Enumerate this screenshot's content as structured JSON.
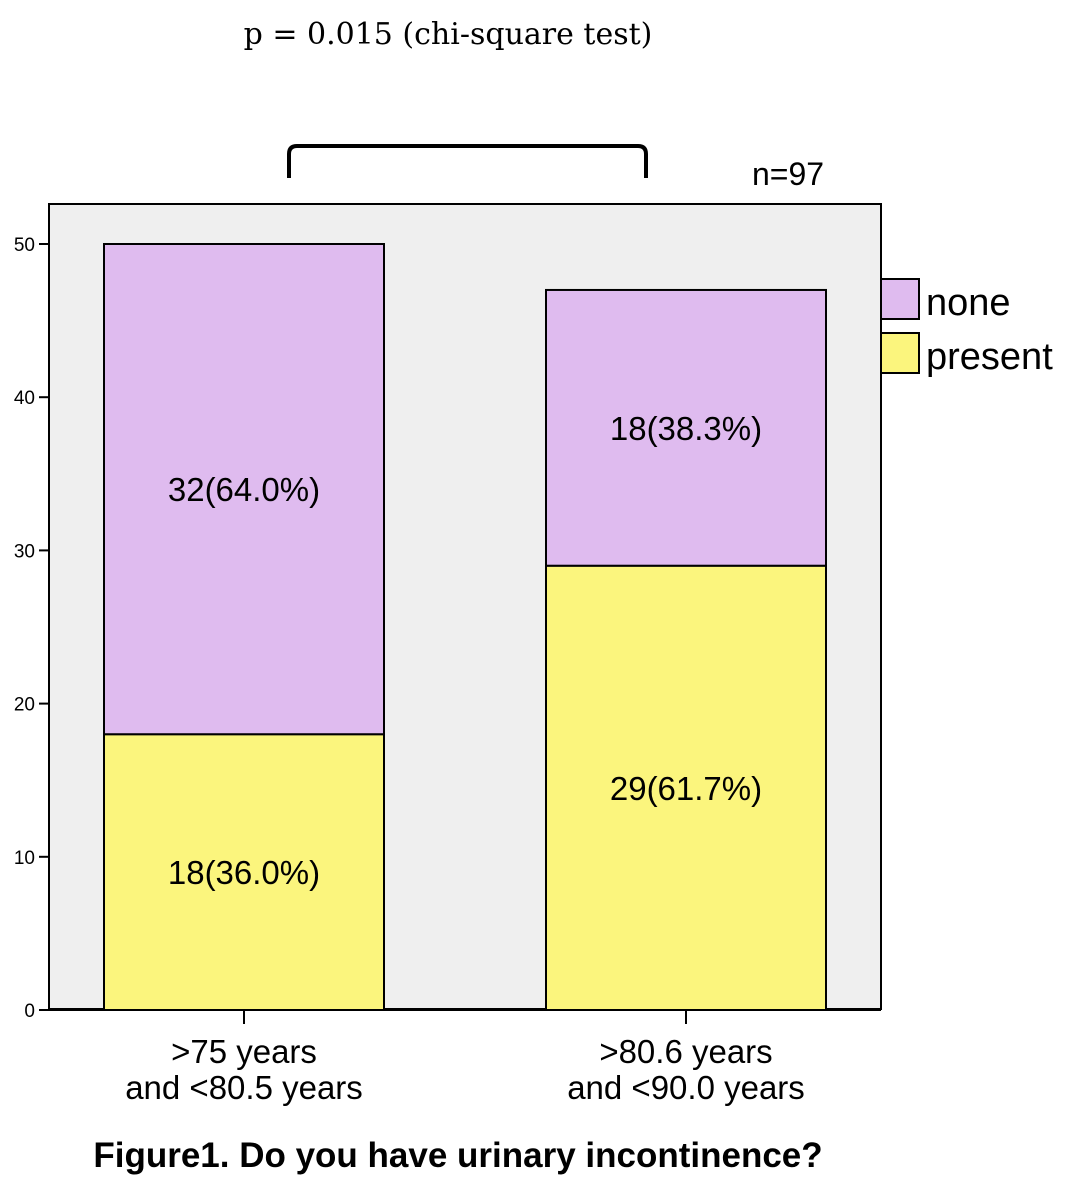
{
  "chart_data": {
    "type": "bar",
    "stacked": true,
    "annotation_top": "p = 0.015 (chi-square test)",
    "sample_size": "n=97",
    "title": "Figure1. Do you have urinary incontinence?",
    "categories": [
      [
        ">75 years",
        "and <80.5 years"
      ],
      [
        ">80.6 years",
        "and <90.0 years"
      ]
    ],
    "series": [
      {
        "name": "present",
        "color": "#fbf57d",
        "values": [
          18,
          29
        ],
        "labels": [
          "18(36.0%)",
          "29(61.7%)"
        ]
      },
      {
        "name": "none",
        "color": "#dfbbef",
        "values": [
          32,
          18
        ],
        "labels": [
          "32(64.0%)",
          "18(38.3%)"
        ]
      }
    ],
    "legend_order": [
      "none",
      "present"
    ],
    "legend_position": "right",
    "ylim": [
      0,
      55
    ],
    "yticks": [
      0,
      10,
      20,
      30,
      40,
      50
    ],
    "plot_background": "#efefef",
    "xlabel": "",
    "ylabel": ""
  }
}
